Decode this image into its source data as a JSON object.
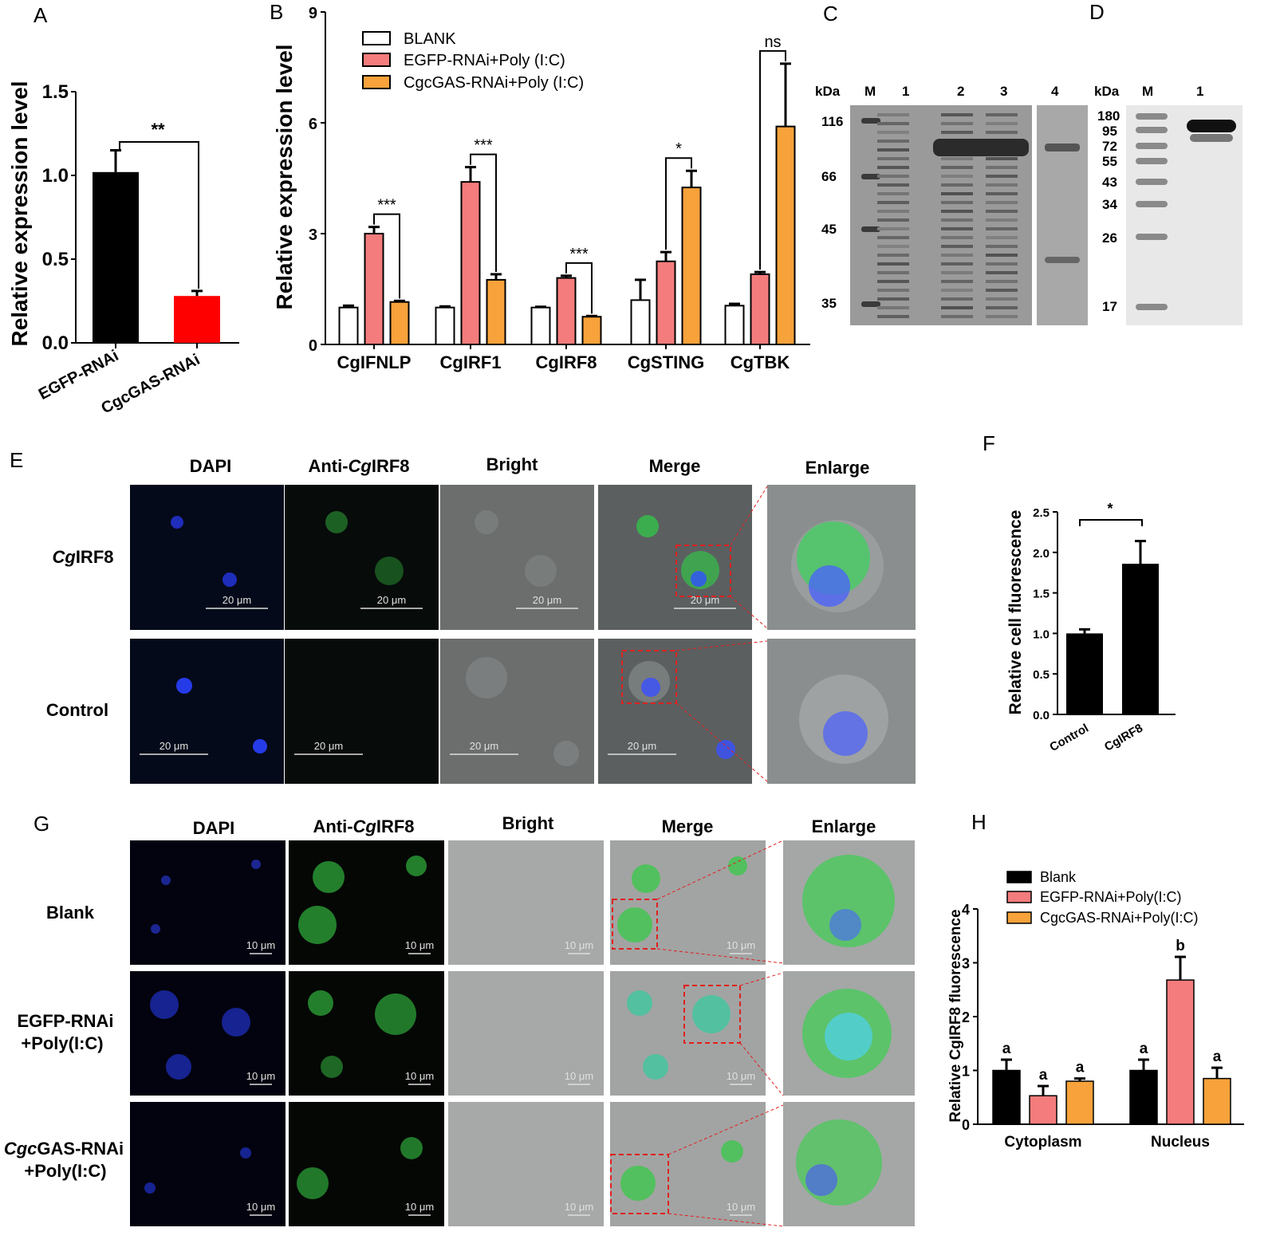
{
  "figure": {
    "panels": [
      "A",
      "B",
      "C",
      "D",
      "E",
      "F",
      "G",
      "H"
    ]
  },
  "panel_a": {
    "chart_data": {
      "type": "bar",
      "ylabel": "Relative expression level",
      "ylim": [
        0,
        1.5
      ],
      "yticks": [
        "0.0",
        "0.5",
        "1.0",
        "1.5"
      ],
      "categories": [
        "EGFP-RNAi",
        "CgcGAS-RNAi"
      ],
      "values": [
        1.02,
        0.28
      ],
      "errors": [
        0.13,
        0.03
      ],
      "colors": [
        "#000000",
        "#ff0000"
      ],
      "significance": "**"
    }
  },
  "panel_b": {
    "chart_data": {
      "type": "bar",
      "ylabel": "Relative expression level",
      "ylim": [
        0,
        9
      ],
      "yticks": [
        "0",
        "3",
        "6",
        "9"
      ],
      "categories": [
        "CgIFNLP",
        "CgIRF1",
        "CgIRF8",
        "CgSTING",
        "CgTBK"
      ],
      "series": [
        {
          "name": "BLANK",
          "color": "#ffffff",
          "values": [
            1.0,
            1.0,
            1.0,
            1.2,
            1.05
          ],
          "errors": [
            0.05,
            0.03,
            0.02,
            0.55,
            0.05
          ]
        },
        {
          "name": "EGFP-RNAi+Poly (I:C)",
          "color": "#f47c7c",
          "values": [
            3.0,
            4.4,
            1.8,
            2.25,
            1.9
          ],
          "errors": [
            0.18,
            0.4,
            0.06,
            0.25,
            0.06
          ]
        },
        {
          "name": "CgcGAS-RNAi+Poly (I:C)",
          "color": "#f7a23b",
          "values": [
            1.15,
            1.75,
            0.75,
            4.25,
            5.9
          ],
          "errors": [
            0.03,
            0.15,
            0.02,
            0.45,
            1.7
          ]
        }
      ],
      "significance": [
        "***",
        "***",
        "***",
        "*",
        "ns"
      ]
    }
  },
  "panel_c": {
    "units": "kDa",
    "lanes": [
      "M",
      "1",
      "2",
      "3",
      "4"
    ],
    "markers": [
      "116",
      "66",
      "45",
      "35"
    ]
  },
  "panel_d": {
    "units": "kDa",
    "lanes": [
      "M",
      "1"
    ],
    "markers": [
      "180",
      "95",
      "72",
      "55",
      "43",
      "34",
      "26",
      "17"
    ]
  },
  "panel_e": {
    "columns": [
      "DAPI",
      "Anti-",
      "Cg",
      "IRF8",
      "Bright",
      "Merge",
      "Enlarge"
    ],
    "rows": [
      "Cg",
      "IRF8",
      "Control"
    ],
    "scale_bar": "20 μm"
  },
  "panel_f": {
    "chart_data": {
      "type": "bar",
      "ylabel": "Relative cell fluorescence",
      "ylim": [
        0,
        2.5
      ],
      "yticks": [
        "0.0",
        "0.5",
        "1.0",
        "1.5",
        "2.0",
        "2.5"
      ],
      "categories": [
        "Control",
        "CgIRF8"
      ],
      "values": [
        1.0,
        1.86
      ],
      "errors": [
        0.05,
        0.28
      ],
      "colors": [
        "#000000",
        "#000000"
      ],
      "significance": "*"
    }
  },
  "panel_g": {
    "columns": [
      "DAPI",
      "Anti-",
      "Cg",
      "IRF8",
      "Bright",
      "Merge",
      "Enlarge"
    ],
    "rows": [
      "Blank",
      "EGFP-RNAi",
      "+Poly(I:C)",
      "Cgc",
      "GAS-RNAi",
      "+Poly(I:C)"
    ],
    "scale_bar": "10 μm"
  },
  "panel_h": {
    "chart_data": {
      "type": "bar",
      "ylabel": "Relative CgIRF8 fluorescence",
      "ylim": [
        0,
        4
      ],
      "yticks": [
        "0",
        "1",
        "2",
        "3",
        "4"
      ],
      "categories": [
        "Cytoplasm",
        "Nucleus"
      ],
      "series": [
        {
          "name": "Blank",
          "color": "#000000",
          "values": [
            1.0,
            1.0
          ],
          "errors": [
            0.2,
            0.2
          ],
          "letters": [
            "a",
            "a"
          ]
        },
        {
          "name": "EGFP-RNAi+Poly(I:C)",
          "color": "#f47c7c",
          "values": [
            0.53,
            2.68
          ],
          "errors": [
            0.18,
            0.43
          ],
          "letters": [
            "a",
            "b"
          ]
        },
        {
          "name": "CgcGAS-RNAi+Poly(I:C)",
          "color": "#f7a23b",
          "values": [
            0.8,
            0.85
          ],
          "errors": [
            0.05,
            0.2
          ],
          "letters": [
            "a",
            "a"
          ]
        }
      ]
    }
  }
}
